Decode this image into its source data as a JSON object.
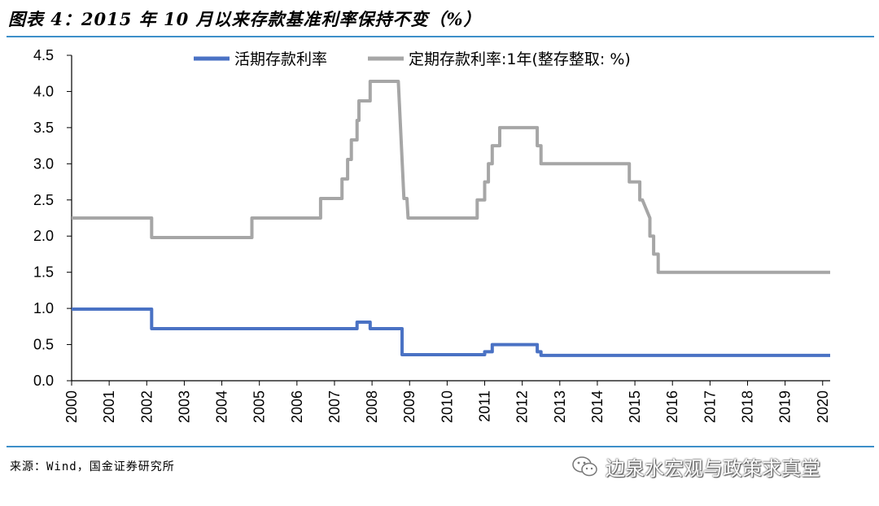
{
  "header": {
    "title": "图表 4：2015 年 10 月以来存款基准利率保持不变（%）"
  },
  "footer": {
    "source": "来源：Wind，国金证券研究所",
    "watermark": "边泉水宏观与政策求真堂"
  },
  "chart_data": {
    "type": "line",
    "title": "图表 4：2015 年 10 月以来存款基准利率保持不变（%）",
    "xlabel": "",
    "ylabel": "",
    "xlim": [
      2000,
      2020.2
    ],
    "ylim": [
      0,
      4.5
    ],
    "yticks": [
      "0.0",
      "0.5",
      "1.0",
      "1.5",
      "2.0",
      "2.5",
      "3.0",
      "3.5",
      "4.0",
      "4.5"
    ],
    "xticks": [
      "2000",
      "2001",
      "2002",
      "2003",
      "2004",
      "2005",
      "2006",
      "2007",
      "2008",
      "2009",
      "2010",
      "2011",
      "2012",
      "2013",
      "2014",
      "2015",
      "2016",
      "2017",
      "2018",
      "2019",
      "2020"
    ],
    "grid": false,
    "legend": "top",
    "series": [
      {
        "name": "活期存款利率",
        "color": "#4a72c4",
        "points": [
          [
            2000,
            0.99
          ],
          [
            2002.13,
            0.99
          ],
          [
            2002.13,
            0.72
          ],
          [
            2007.6,
            0.72
          ],
          [
            2007.6,
            0.81
          ],
          [
            2007.95,
            0.81
          ],
          [
            2007.95,
            0.72
          ],
          [
            2008.8,
            0.72
          ],
          [
            2008.8,
            0.36
          ],
          [
            2011.0,
            0.36
          ],
          [
            2011.0,
            0.4
          ],
          [
            2011.2,
            0.4
          ],
          [
            2011.2,
            0.5
          ],
          [
            2012.4,
            0.5
          ],
          [
            2012.4,
            0.4
          ],
          [
            2012.5,
            0.4
          ],
          [
            2012.5,
            0.35
          ],
          [
            2020.2,
            0.35
          ]
        ]
      },
      {
        "name": "定期存款利率:1年(整存整取: %)",
        "color": "#a6a6a6",
        "points": [
          [
            2000,
            2.25
          ],
          [
            2002.13,
            2.25
          ],
          [
            2002.13,
            1.98
          ],
          [
            2004.8,
            1.98
          ],
          [
            2004.8,
            2.25
          ],
          [
            2006.63,
            2.25
          ],
          [
            2006.63,
            2.52
          ],
          [
            2007.2,
            2.52
          ],
          [
            2007.2,
            2.79
          ],
          [
            2007.35,
            2.79
          ],
          [
            2007.35,
            3.06
          ],
          [
            2007.45,
            3.06
          ],
          [
            2007.45,
            3.33
          ],
          [
            2007.6,
            3.33
          ],
          [
            2007.6,
            3.6
          ],
          [
            2007.65,
            3.6
          ],
          [
            2007.65,
            3.87
          ],
          [
            2007.95,
            3.87
          ],
          [
            2007.95,
            4.14
          ],
          [
            2008.7,
            4.14
          ],
          [
            2008.75,
            3.6
          ],
          [
            2008.85,
            2.52
          ],
          [
            2008.93,
            2.52
          ],
          [
            2008.96,
            2.25
          ],
          [
            2010.8,
            2.25
          ],
          [
            2010.8,
            2.5
          ],
          [
            2011.0,
            2.5
          ],
          [
            2011.0,
            2.75
          ],
          [
            2011.1,
            2.75
          ],
          [
            2011.1,
            3.0
          ],
          [
            2011.2,
            3.0
          ],
          [
            2011.2,
            3.25
          ],
          [
            2011.4,
            3.25
          ],
          [
            2011.4,
            3.5
          ],
          [
            2012.4,
            3.5
          ],
          [
            2012.4,
            3.25
          ],
          [
            2012.5,
            3.25
          ],
          [
            2012.5,
            3.0
          ],
          [
            2014.85,
            3.0
          ],
          [
            2014.85,
            2.75
          ],
          [
            2015.13,
            2.75
          ],
          [
            2015.13,
            2.5
          ],
          [
            2015.2,
            2.5
          ],
          [
            2015.4,
            2.25
          ],
          [
            2015.4,
            2.0
          ],
          [
            2015.5,
            2.0
          ],
          [
            2015.5,
            1.75
          ],
          [
            2015.62,
            1.75
          ],
          [
            2015.62,
            1.5
          ],
          [
            2020.2,
            1.5
          ]
        ]
      }
    ]
  }
}
